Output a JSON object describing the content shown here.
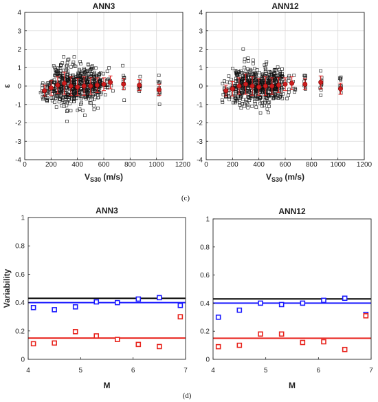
{
  "captions": {
    "c": "(c)",
    "d": "(d)"
  },
  "chart_data": [
    {
      "id": "top-left",
      "type": "scatter",
      "title": "ANN3",
      "xlabel": "V",
      "xlabel_sub": "S30",
      "xlabel_unit": " (m/s)",
      "ylabel": "ε",
      "xlim": [
        0,
        1200
      ],
      "ylim": [
        -4,
        4
      ],
      "xticks": [
        0,
        200,
        400,
        600,
        800,
        1000,
        1200
      ],
      "yticks": [
        -4,
        -3,
        -2,
        -1,
        0,
        1,
        2,
        3,
        4
      ],
      "grid": true,
      "binned_means": {
        "x": [
          150,
          200,
          250,
          300,
          350,
          400,
          450,
          500,
          550,
          600,
          650,
          750,
          870,
          1020
        ],
        "mean": [
          -0.25,
          -0.1,
          0.05,
          0.15,
          0.0,
          -0.05,
          0.0,
          0.0,
          0.05,
          0.1,
          0.2,
          0.1,
          0.05,
          -0.2
        ],
        "std": [
          0.3,
          0.4,
          0.45,
          0.6,
          0.5,
          0.45,
          0.5,
          0.45,
          0.4,
          0.35,
          0.35,
          0.3,
          0.3,
          0.3
        ]
      }
    },
    {
      "id": "top-right",
      "type": "scatter",
      "title": "ANN12",
      "xlabel": "V",
      "xlabel_sub": "S30",
      "xlabel_unit": " (m/s)",
      "ylabel": "",
      "xlim": [
        0,
        1200
      ],
      "ylim": [
        -4,
        4
      ],
      "xticks": [
        0,
        200,
        400,
        600,
        800,
        1000,
        1200
      ],
      "yticks": [
        -4,
        -3,
        -2,
        -1,
        0,
        1,
        2,
        3,
        4
      ],
      "grid": true,
      "binned_means": {
        "x": [
          150,
          200,
          250,
          300,
          350,
          400,
          450,
          500,
          550,
          600,
          650,
          750,
          870,
          1020
        ],
        "mean": [
          -0.25,
          -0.15,
          0.0,
          0.1,
          0.0,
          -0.05,
          0.0,
          0.0,
          0.05,
          0.1,
          0.15,
          0.1,
          0.2,
          -0.15
        ],
        "std": [
          0.3,
          0.4,
          0.45,
          0.55,
          0.5,
          0.45,
          0.5,
          0.45,
          0.4,
          0.35,
          0.35,
          0.3,
          0.35,
          0.3
        ]
      }
    },
    {
      "id": "bottom-left",
      "type": "scatter",
      "title": "ANN3",
      "xlabel": "M",
      "ylabel": "Variability",
      "xlim": [
        4,
        7
      ],
      "ylim": [
        0,
        1
      ],
      "xticks": [
        4,
        5,
        6,
        7
      ],
      "yticks": [
        0,
        0.2,
        0.4,
        0.6,
        0.8,
        1
      ],
      "ytick_labels": [
        "0",
        "0.2",
        "0.4",
        "0.6",
        "0.8",
        "1"
      ],
      "grid": false,
      "hlines": [
        {
          "y": 0.43,
          "color": "#000000"
        },
        {
          "y": 0.4,
          "color": "#1a1aff"
        },
        {
          "y": 0.15,
          "color": "#e8231c"
        }
      ],
      "series": [
        {
          "color": "#1a1aff",
          "x": [
            4.1,
            4.5,
            4.9,
            5.3,
            5.7,
            6.1,
            6.5,
            6.9
          ],
          "y": [
            0.365,
            0.35,
            0.37,
            0.405,
            0.4,
            0.425,
            0.435,
            0.38
          ]
        },
        {
          "color": "#e8231c",
          "x": [
            4.1,
            4.5,
            4.9,
            5.3,
            5.7,
            6.1,
            6.5,
            6.9
          ],
          "y": [
            0.11,
            0.115,
            0.195,
            0.165,
            0.14,
            0.105,
            0.09,
            0.3
          ]
        }
      ]
    },
    {
      "id": "bottom-right",
      "type": "scatter",
      "title": "ANN12",
      "xlabel": "M",
      "ylabel": "",
      "xlim": [
        4,
        7
      ],
      "ylim": [
        0,
        1
      ],
      "xticks": [
        4,
        5,
        6,
        7
      ],
      "yticks": [
        0,
        0.2,
        0.4,
        0.6,
        0.8,
        1
      ],
      "ytick_labels": [
        "0",
        "0.2",
        "0.4",
        "0.6",
        "0.8",
        "1"
      ],
      "grid": false,
      "hlines": [
        {
          "y": 0.43,
          "color": "#000000"
        },
        {
          "y": 0.4,
          "color": "#1a1aff"
        },
        {
          "y": 0.15,
          "color": "#e8231c"
        }
      ],
      "series": [
        {
          "color": "#1a1aff",
          "x": [
            4.1,
            4.5,
            4.9,
            5.3,
            5.7,
            6.1,
            6.5,
            6.9
          ],
          "y": [
            0.3,
            0.35,
            0.4,
            0.39,
            0.4,
            0.42,
            0.435,
            0.32
          ]
        },
        {
          "color": "#e8231c",
          "x": [
            4.1,
            4.5,
            4.9,
            5.3,
            5.7,
            6.1,
            6.5,
            6.9
          ],
          "y": [
            0.09,
            0.1,
            0.18,
            0.18,
            0.12,
            0.125,
            0.07,
            0.31
          ]
        }
      ]
    }
  ]
}
